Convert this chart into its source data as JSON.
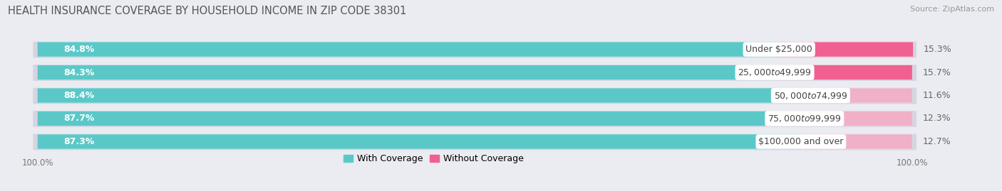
{
  "title": "HEALTH INSURANCE COVERAGE BY HOUSEHOLD INCOME IN ZIP CODE 38301",
  "source": "Source: ZipAtlas.com",
  "categories": [
    "Under $25,000",
    "$25,000 to $49,999",
    "$50,000 to $74,999",
    "$75,000 to $99,999",
    "$100,000 and over"
  ],
  "with_coverage": [
    84.8,
    84.3,
    88.4,
    87.7,
    87.3
  ],
  "without_coverage": [
    15.3,
    15.7,
    11.6,
    12.3,
    12.7
  ],
  "coverage_color": "#5BC8C8",
  "no_coverage_color_1": "#F06090",
  "no_coverage_color_2": "#F0A0C0",
  "no_coverage_colors": [
    "#F06090",
    "#F06090",
    "#F0B0C8",
    "#F0B0C8",
    "#F0B0C8"
  ],
  "bg_color": "#ebebf2",
  "bar_bg_color": "#e0e0ea",
  "bar_height": 0.6,
  "title_fontsize": 10.5,
  "label_fontsize": 9,
  "tick_fontsize": 8.5,
  "source_fontsize": 8,
  "total_width": 100
}
